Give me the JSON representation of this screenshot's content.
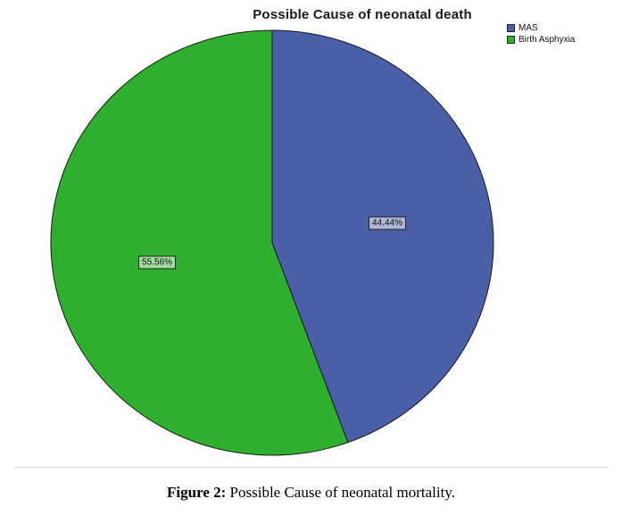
{
  "chart_data": {
    "type": "pie",
    "title": "Possible Cause of neonatal death",
    "start_angle_deg": 0,
    "direction": "clockwise",
    "legend_position": "top-right",
    "slices": [
      {
        "label": "MAS",
        "value": 44.44,
        "display": "44.44%",
        "color": "#4b5fa8"
      },
      {
        "label": "Birth Asphyxia",
        "value": 55.56,
        "display": "55.56%",
        "color": "#2eb02e"
      }
    ]
  },
  "caption": {
    "prefix": "Figure 2:",
    "text": " Possible Cause of neonatal mortality."
  }
}
